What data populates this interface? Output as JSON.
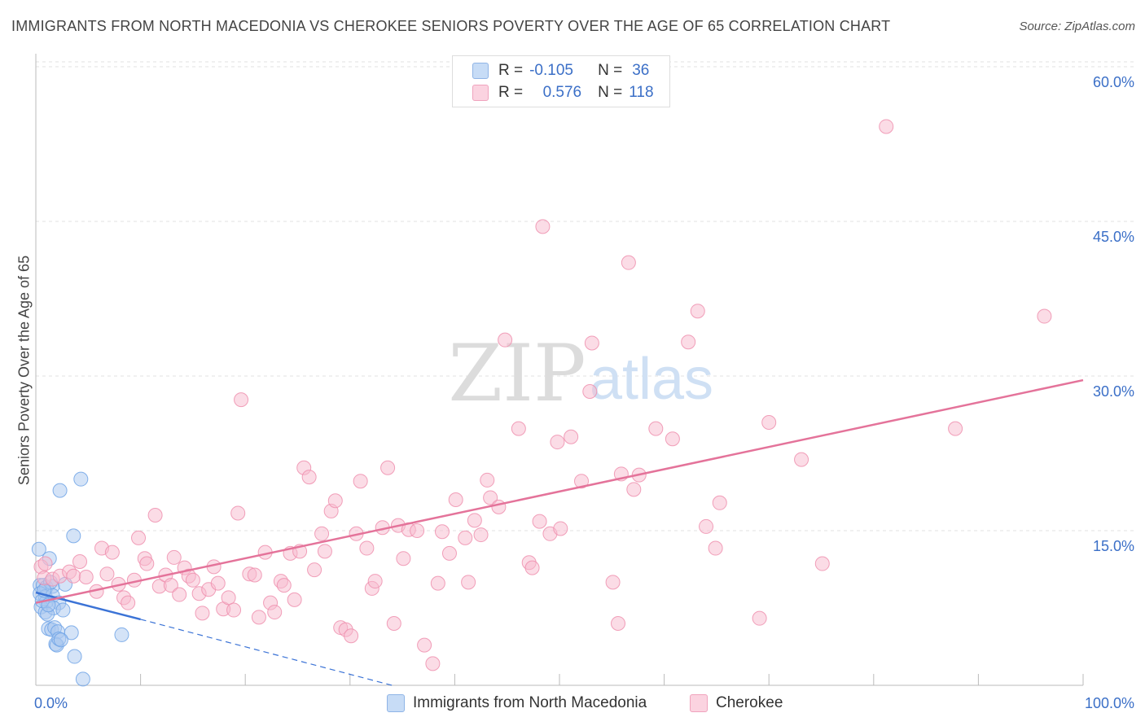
{
  "title": "IMMIGRANTS FROM NORTH MACEDONIA VS CHEROKEE SENIORS POVERTY OVER THE AGE OF 65 CORRELATION CHART",
  "source": "Source: ZipAtlas.com",
  "watermark": {
    "zip": "ZIP",
    "atlas": "atlas"
  },
  "legend_top": {
    "rows": [
      {
        "r_label": "R =",
        "r_value": "-0.105",
        "n_label": "N =",
        "n_value": "36",
        "color": "#a9c8f0"
      },
      {
        "r_label": "R =",
        "r_value": "0.576",
        "n_label": "N =",
        "n_value": "118",
        "color": "#f7b9cd"
      }
    ]
  },
  "chart_data": {
    "type": "scatter",
    "title": "IMMIGRANTS FROM NORTH MACEDONIA VS CHEROKEE SENIORS POVERTY OVER THE AGE OF 65 CORRELATION CHART",
    "xlabel": "",
    "ylabel": "Seniors Poverty Over the Age of 65",
    "xlim": [
      0,
      100
    ],
    "ylim": [
      0,
      62
    ],
    "x_tick_labels": [
      {
        "value": 0,
        "label": "0.0%"
      },
      {
        "value": 100,
        "label": "100.0%"
      }
    ],
    "y_tick_labels": [
      {
        "value": 15,
        "label": "15.0%"
      },
      {
        "value": 30,
        "label": "30.0%"
      },
      {
        "value": 45,
        "label": "45.0%"
      },
      {
        "value": 60,
        "label": "60.0%"
      }
    ],
    "grid": true,
    "legend_position": "bottom",
    "series": [
      {
        "name": "Immigrants from North Macedonia",
        "color": "#6fa3e6",
        "fill": "#a9c8f0",
        "trend": {
          "x0": 0,
          "y0": 9.0,
          "x1": 10,
          "y1": 6.4,
          "dashed_to_x": 34,
          "dashed_to_y": 0.0,
          "color": "#3b73d6"
        },
        "points": [
          [
            0.3,
            13.2
          ],
          [
            1.3,
            12.3
          ],
          [
            0.4,
            9.7
          ],
          [
            0.7,
            9.7
          ],
          [
            1.0,
            9.5
          ],
          [
            1.6,
            9.6
          ],
          [
            0.4,
            8.9
          ],
          [
            0.9,
            8.6
          ],
          [
            1.6,
            8.7
          ],
          [
            2.2,
            8.0
          ],
          [
            1.0,
            8.1
          ],
          [
            0.5,
            7.6
          ],
          [
            0.9,
            7.1
          ],
          [
            1.7,
            7.5
          ],
          [
            2.6,
            7.3
          ],
          [
            1.2,
            5.5
          ],
          [
            1.5,
            5.4
          ],
          [
            1.8,
            5.6
          ],
          [
            2.1,
            5.2
          ],
          [
            3.4,
            5.1
          ],
          [
            1.9,
            4.0
          ],
          [
            2.0,
            3.9
          ],
          [
            2.2,
            4.5
          ],
          [
            3.7,
            2.8
          ],
          [
            4.5,
            0.6
          ],
          [
            2.3,
            18.9
          ],
          [
            4.3,
            20.0
          ],
          [
            3.6,
            14.5
          ],
          [
            8.2,
            4.9
          ],
          [
            2.8,
            9.8
          ],
          [
            0.6,
            8.2
          ],
          [
            1.1,
            6.9
          ],
          [
            1.4,
            10.0
          ],
          [
            0.8,
            9.2
          ],
          [
            2.4,
            4.4
          ],
          [
            1.2,
            7.8
          ]
        ]
      },
      {
        "name": "Cherokee",
        "color": "#ee8fae",
        "fill": "#f7b9cd",
        "trend": {
          "x0": 0,
          "y0": 8.0,
          "x1": 100,
          "y1": 29.6,
          "color": "#e4739a"
        },
        "points": [
          [
            0.5,
            11.5
          ],
          [
            0.8,
            10.4
          ],
          [
            1.6,
            10.3
          ],
          [
            2.3,
            10.6
          ],
          [
            3.2,
            11.0
          ],
          [
            3.6,
            10.6
          ],
          [
            4.2,
            12.0
          ],
          [
            4.8,
            10.5
          ],
          [
            5.8,
            9.1
          ],
          [
            6.3,
            13.3
          ],
          [
            6.8,
            10.8
          ],
          [
            7.3,
            12.9
          ],
          [
            7.9,
            9.8
          ],
          [
            8.4,
            8.5
          ],
          [
            8.8,
            8.0
          ],
          [
            9.4,
            10.2
          ],
          [
            9.8,
            14.3
          ],
          [
            10.4,
            12.3
          ],
          [
            10.6,
            11.8
          ],
          [
            11.4,
            16.5
          ],
          [
            11.8,
            9.6
          ],
          [
            12.4,
            10.7
          ],
          [
            12.9,
            9.7
          ],
          [
            13.2,
            12.4
          ],
          [
            13.7,
            8.8
          ],
          [
            14.2,
            11.4
          ],
          [
            14.6,
            10.6
          ],
          [
            15.0,
            10.2
          ],
          [
            15.6,
            8.9
          ],
          [
            15.9,
            7.0
          ],
          [
            16.5,
            9.3
          ],
          [
            17.0,
            11.5
          ],
          [
            17.4,
            9.9
          ],
          [
            17.9,
            7.4
          ],
          [
            18.4,
            8.5
          ],
          [
            18.9,
            7.3
          ],
          [
            19.3,
            16.7
          ],
          [
            19.6,
            27.7
          ],
          [
            20.4,
            10.8
          ],
          [
            20.9,
            10.7
          ],
          [
            21.3,
            6.6
          ],
          [
            21.9,
            12.9
          ],
          [
            22.4,
            8.0
          ],
          [
            22.8,
            7.1
          ],
          [
            23.4,
            10.1
          ],
          [
            23.7,
            9.7
          ],
          [
            24.3,
            12.8
          ],
          [
            24.7,
            8.3
          ],
          [
            25.2,
            13.0
          ],
          [
            25.6,
            21.1
          ],
          [
            26.1,
            20.2
          ],
          [
            26.6,
            11.2
          ],
          [
            27.3,
            14.7
          ],
          [
            27.6,
            13.0
          ],
          [
            28.2,
            16.9
          ],
          [
            28.6,
            17.9
          ],
          [
            29.1,
            5.6
          ],
          [
            29.6,
            5.4
          ],
          [
            30.1,
            4.8
          ],
          [
            30.6,
            14.7
          ],
          [
            31.0,
            19.8
          ],
          [
            31.6,
            13.3
          ],
          [
            32.1,
            9.4
          ],
          [
            32.4,
            10.1
          ],
          [
            33.1,
            15.3
          ],
          [
            33.6,
            21.1
          ],
          [
            34.2,
            6.0
          ],
          [
            34.6,
            15.5
          ],
          [
            35.1,
            12.3
          ],
          [
            35.6,
            15.1
          ],
          [
            36.4,
            15.0
          ],
          [
            37.1,
            3.9
          ],
          [
            37.9,
            2.1
          ],
          [
            38.4,
            9.9
          ],
          [
            38.8,
            14.9
          ],
          [
            39.5,
            12.8
          ],
          [
            40.1,
            18.0
          ],
          [
            41.0,
            14.3
          ],
          [
            41.3,
            10.0
          ],
          [
            41.9,
            16.0
          ],
          [
            42.5,
            14.6
          ],
          [
            43.1,
            19.9
          ],
          [
            43.4,
            18.2
          ],
          [
            44.2,
            17.3
          ],
          [
            44.8,
            33.5
          ],
          [
            46.1,
            24.9
          ],
          [
            47.1,
            11.9
          ],
          [
            47.4,
            11.4
          ],
          [
            48.1,
            15.9
          ],
          [
            48.4,
            44.5
          ],
          [
            49.1,
            14.7
          ],
          [
            49.8,
            23.6
          ],
          [
            50.1,
            15.2
          ],
          [
            51.1,
            24.1
          ],
          [
            52.1,
            19.8
          ],
          [
            52.9,
            28.5
          ],
          [
            53.1,
            33.2
          ],
          [
            55.1,
            10.0
          ],
          [
            55.6,
            6.0
          ],
          [
            55.9,
            20.5
          ],
          [
            56.6,
            41.0
          ],
          [
            57.1,
            19.0
          ],
          [
            57.6,
            20.4
          ],
          [
            59.2,
            24.9
          ],
          [
            60.8,
            23.9
          ],
          [
            62.3,
            33.3
          ],
          [
            63.2,
            36.3
          ],
          [
            64.0,
            15.4
          ],
          [
            64.9,
            13.3
          ],
          [
            65.3,
            17.7
          ],
          [
            69.1,
            6.5
          ],
          [
            70.0,
            25.5
          ],
          [
            73.1,
            21.9
          ],
          [
            75.1,
            11.8
          ],
          [
            81.2,
            54.2
          ],
          [
            87.8,
            24.9
          ],
          [
            96.3,
            35.8
          ],
          [
            0.9,
            11.8
          ]
        ]
      }
    ]
  }
}
